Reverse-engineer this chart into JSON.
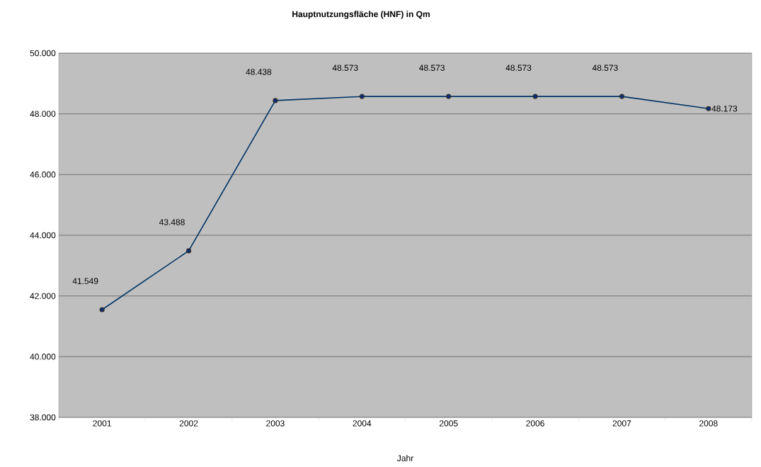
{
  "chart_data": {
    "type": "line",
    "title": "Hauptnutzungsfläche (HNF) in Qm",
    "xlabel": "Jahr",
    "categories": [
      "2001",
      "2002",
      "2003",
      "2004",
      "2005",
      "2006",
      "2007",
      "2008"
    ],
    "series": [
      {
        "color": "#003366",
        "values": [
          41549,
          43488,
          48438,
          48573,
          48573,
          48573,
          48573,
          48173
        ],
        "value_labels": [
          "41.549",
          "43.488",
          "48.438",
          "48.573",
          "48.573",
          "48.573",
          "48.573",
          "48.173"
        ]
      }
    ],
    "ylim": [
      38000,
      50000
    ],
    "yticks": [
      {
        "value": 38000,
        "label": "38.000"
      },
      {
        "value": 40000,
        "label": "40.000"
      },
      {
        "value": 42000,
        "label": "42.000"
      },
      {
        "value": 44000,
        "label": "44.000"
      },
      {
        "value": 46000,
        "label": "46.000"
      },
      {
        "value": 48000,
        "label": "48.000"
      },
      {
        "value": 50000,
        "label": "50.000"
      }
    ],
    "grid": "y",
    "marker": "circle",
    "line_style": "solid"
  }
}
